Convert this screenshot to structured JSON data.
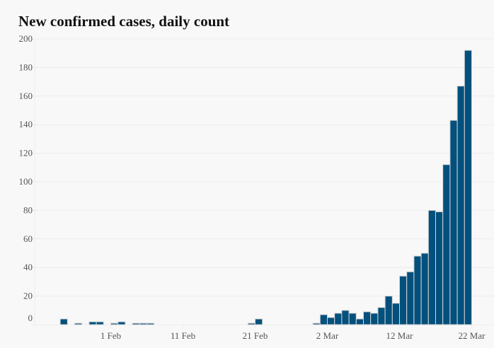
{
  "chart_data": {
    "type": "bar",
    "title": "New confirmed cases, daily count",
    "xlabel": "",
    "ylabel": "",
    "ylim": [
      0,
      200
    ],
    "grid": true,
    "y_ticks": [
      0,
      20,
      40,
      60,
      80,
      100,
      120,
      140,
      160,
      180,
      200
    ],
    "x_ticks": [
      {
        "label": "1 Feb",
        "day": 0
      },
      {
        "label": "11 Feb",
        "day": 10
      },
      {
        "label": "21 Feb",
        "day": 20
      },
      {
        "label": "2 Mar",
        "day": 30
      },
      {
        "label": "12 Mar",
        "day": 40
      },
      {
        "label": "22 Mar",
        "day": 50
      }
    ],
    "x_range_days_from_1_feb": [
      -10,
      51
    ],
    "bars": [
      {
        "date": "25 Jan",
        "day": -7,
        "value": 4
      },
      {
        "date": "27 Jan",
        "day": -5,
        "value": 1
      },
      {
        "date": "29 Jan",
        "day": -3,
        "value": 2
      },
      {
        "date": "30 Jan",
        "day": -2,
        "value": 2
      },
      {
        "date": "1 Feb",
        "day": 0,
        "value": 1
      },
      {
        "date": "2 Feb",
        "day": 1,
        "value": 2
      },
      {
        "date": "4 Feb",
        "day": 3,
        "value": 1
      },
      {
        "date": "5 Feb",
        "day": 4,
        "value": 1
      },
      {
        "date": "6 Feb",
        "day": 5,
        "value": 1
      },
      {
        "date": "20 Feb",
        "day": 19,
        "value": 1
      },
      {
        "date": "21 Feb",
        "day": 20,
        "value": 4
      },
      {
        "date": "29 Feb",
        "day": 28,
        "value": 1
      },
      {
        "date": "1 Mar",
        "day": 29,
        "value": 7
      },
      {
        "date": "2 Mar",
        "day": 30,
        "value": 5
      },
      {
        "date": "3 Mar",
        "day": 31,
        "value": 8
      },
      {
        "date": "4 Mar",
        "day": 32,
        "value": 10
      },
      {
        "date": "5 Mar",
        "day": 33,
        "value": 8
      },
      {
        "date": "6 Mar",
        "day": 34,
        "value": 4
      },
      {
        "date": "7 Mar",
        "day": 35,
        "value": 9
      },
      {
        "date": "8 Mar",
        "day": 36,
        "value": 8
      },
      {
        "date": "9 Mar",
        "day": 37,
        "value": 12
      },
      {
        "date": "10 Mar",
        "day": 38,
        "value": 20
      },
      {
        "date": "11 Mar",
        "day": 39,
        "value": 15
      },
      {
        "date": "12 Mar",
        "day": 40,
        "value": 34
      },
      {
        "date": "13 Mar",
        "day": 41,
        "value": 37
      },
      {
        "date": "14 Mar",
        "day": 42,
        "value": 48
      },
      {
        "date": "15 Mar",
        "day": 43,
        "value": 50
      },
      {
        "date": "16 Mar",
        "day": 44,
        "value": 80
      },
      {
        "date": "17 Mar",
        "day": 45,
        "value": 79
      },
      {
        "date": "18 Mar",
        "day": 46,
        "value": 112
      },
      {
        "date": "19 Mar",
        "day": 47,
        "value": 143
      },
      {
        "date": "20 Mar",
        "day": 48,
        "value": 167
      },
      {
        "date": "21 Mar",
        "day": 49,
        "value": 192
      }
    ],
    "colors": {
      "bar": "#03507d",
      "bar_border": "#d4d4d4",
      "grid": "#ececec",
      "background": "#f8f8f8",
      "tick_text": "#555555",
      "title_text": "#111111"
    }
  }
}
